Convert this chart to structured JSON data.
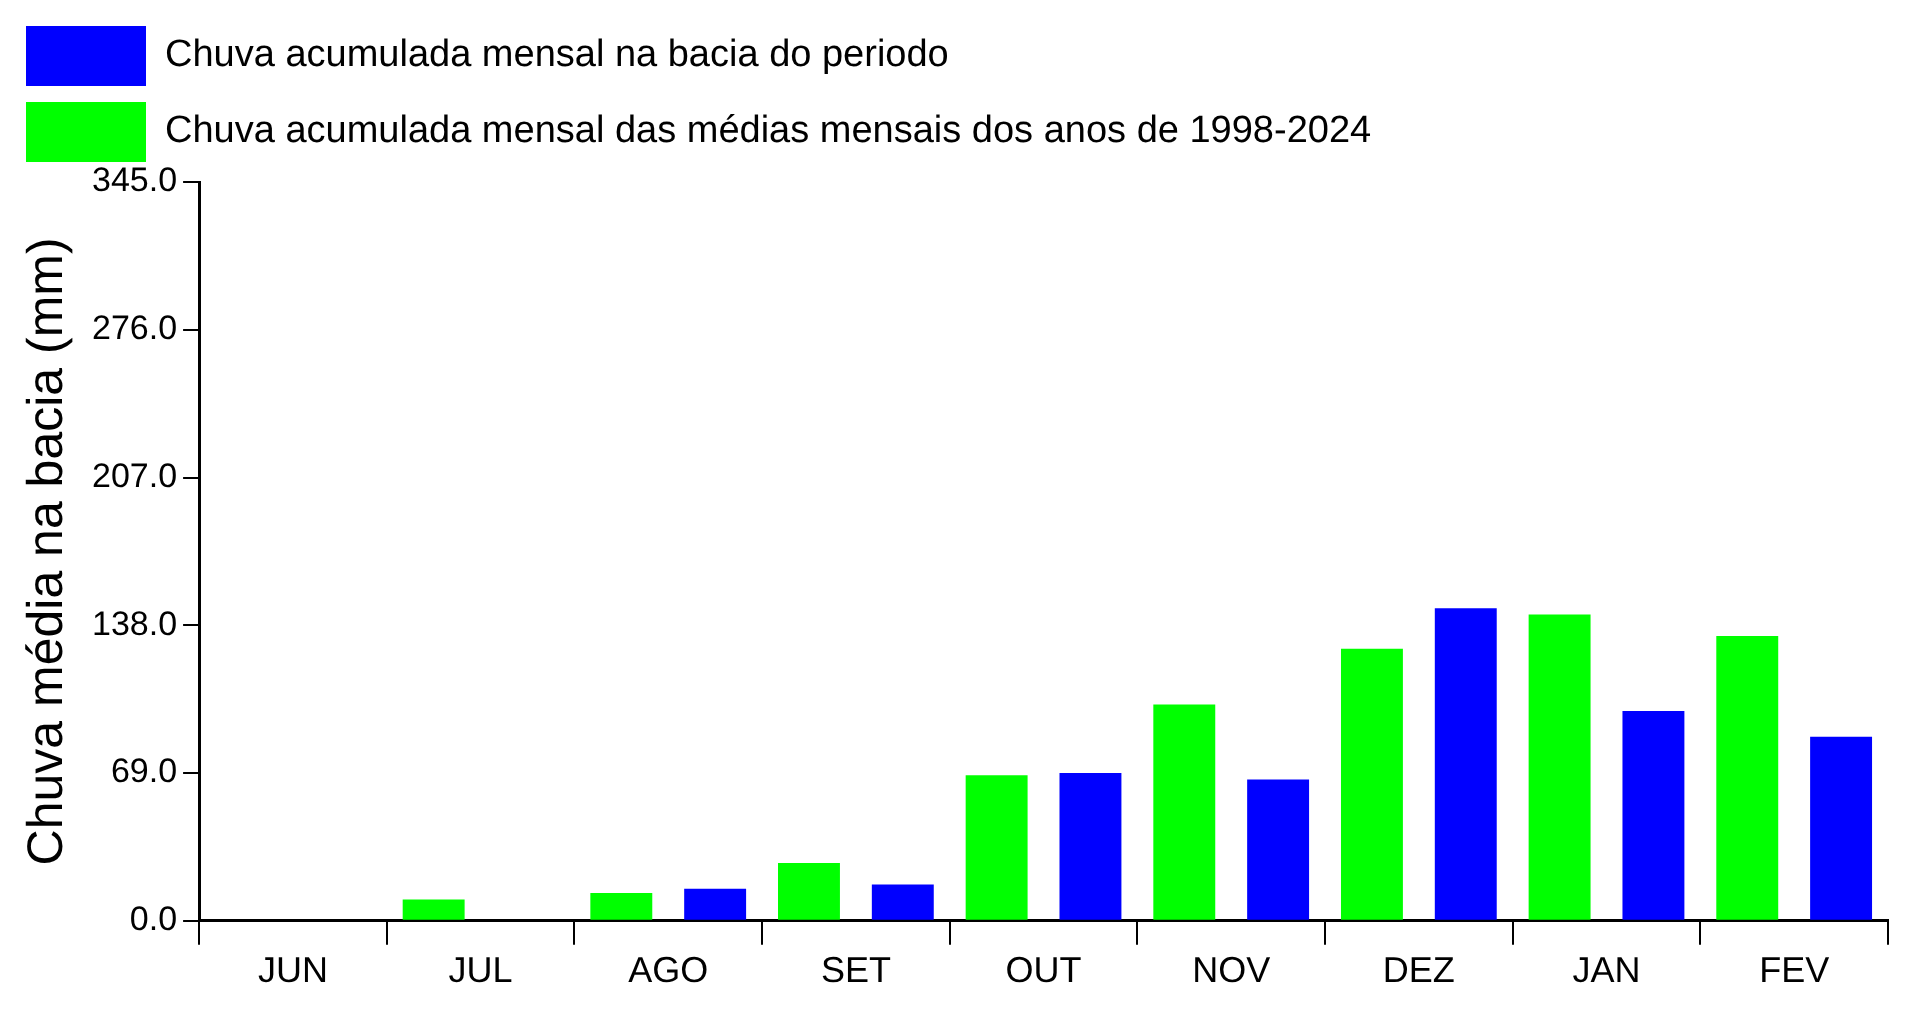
{
  "chart_data": {
    "type": "bar",
    "ylabel": "Chuva média na bacia (mm)",
    "categories": [
      "JUN",
      "JUL",
      "AGO",
      "SET",
      "OUT",
      "NOV",
      "DEZ",
      "JAN",
      "FEV"
    ],
    "series": [
      {
        "name": "Chuva acumulada mensal das médias mensais dos anos de 1998-2024",
        "color": "#00ff00",
        "values": [
          0,
          10,
          13,
          27,
          68,
          101,
          127,
          143,
          133
        ]
      },
      {
        "name": "Chuva acumulada mensal na bacia do periodo",
        "color": "#0000ff",
        "values": [
          0,
          0,
          15,
          17,
          69,
          66,
          146,
          98,
          86
        ]
      }
    ],
    "ylim": [
      0,
      345
    ],
    "yticks": [
      {
        "value": 0,
        "label": "0.0"
      },
      {
        "value": 69,
        "label": "69.0"
      },
      {
        "value": 138,
        "label": "138.0"
      },
      {
        "value": 207,
        "label": "207.0"
      },
      {
        "value": 276,
        "label": "276.0"
      },
      {
        "value": 345,
        "label": "345.0"
      }
    ],
    "grid": false,
    "legend": "top left"
  }
}
